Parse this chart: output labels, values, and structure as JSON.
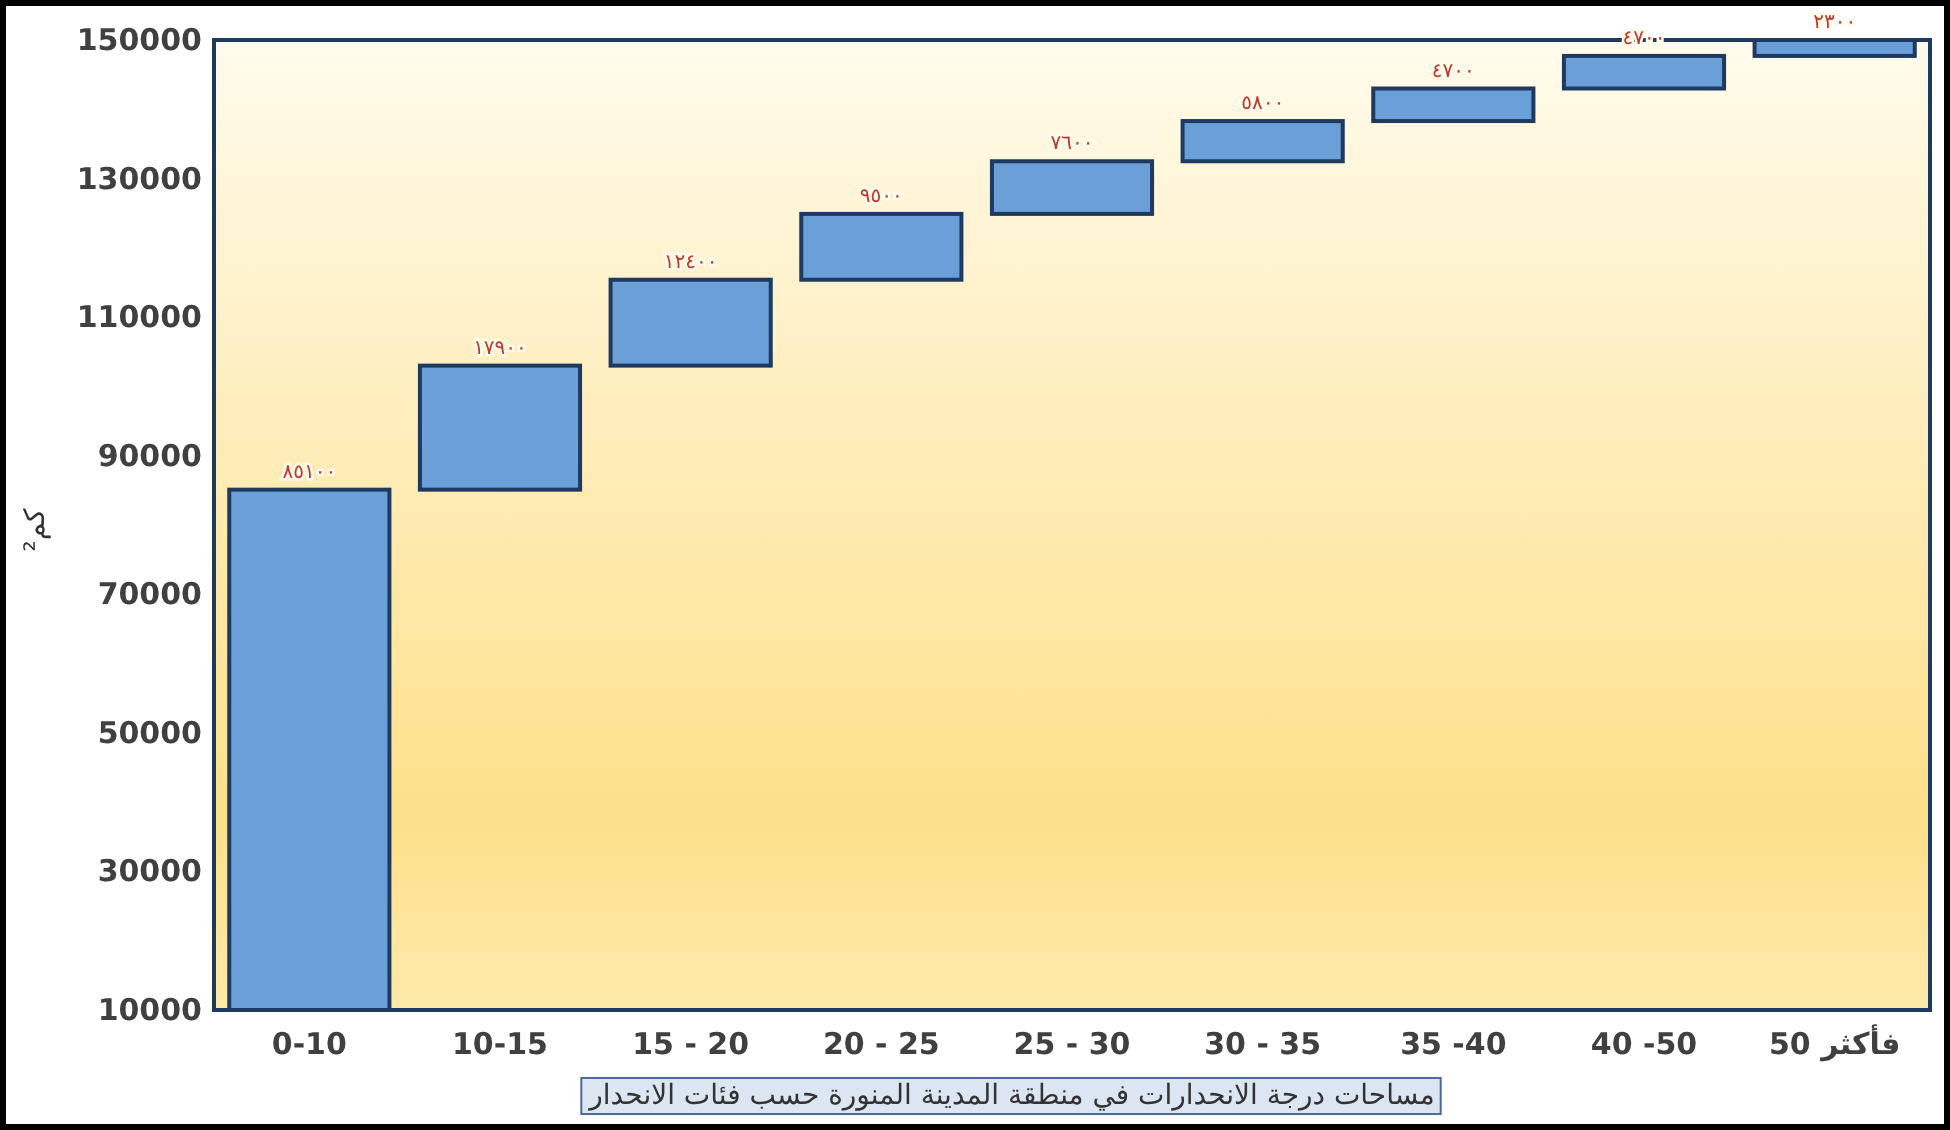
{
  "chart_data": {
    "type": "bar",
    "xlabel": "مساحات درجة الانحدارات في منطقة المدينة المنورة حسب فئات الانحدار",
    "ylabel": "كم²",
    "categories": [
      "0-10",
      "10-15",
      "15 - 20",
      "20 - 25",
      "25 - 30",
      "30 - 35",
      "35 -40",
      "40 -50",
      "50 فأكثر"
    ],
    "values": [
      85100,
      17900,
      12400,
      9500,
      7600,
      5800,
      4700,
      4700,
      2300
    ],
    "base": [
      0,
      85100,
      103000,
      115400,
      124900,
      132500,
      138300,
      143000,
      147700
    ],
    "value_labels": [
      "٨٥١٠٠",
      "١٧٩٠٠",
      "١٢٤٠٠",
      "٩٥٠٠",
      "٧٦٠٠",
      "٥٨٠٠",
      "٤٧٠٠",
      "٤٧٠٠",
      "٢٣٠٠"
    ],
    "color": "#6a9fd8",
    "ylim": [
      10000,
      150000
    ],
    "yticks": [
      10000,
      30000,
      50000,
      70000,
      90000,
      110000,
      130000,
      150000
    ]
  }
}
